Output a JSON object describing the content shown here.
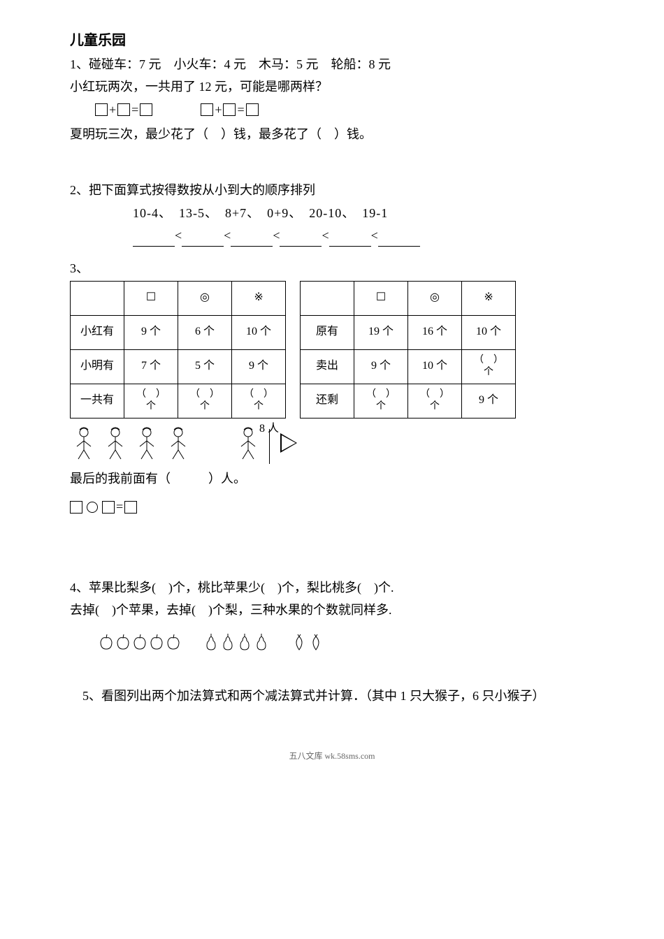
{
  "title": "儿童乐园",
  "q1": {
    "line1": "1、碰碰车：7 元　小火车：4 元　木马：5 元　轮船：8 元",
    "line2": "小红玩两次，一共用了 12 元，可能是哪两样？",
    "line3": "夏明玩三次，最少花了（　）钱，最多花了（　）钱。"
  },
  "q2": {
    "prompt": "2、把下面算式按得数按从小到大的顺序排列",
    "expressions": "10-4、　13-5、　8+7、　0+9、　20-10、　19-1"
  },
  "q3": {
    "label": "3、",
    "table1": {
      "headers": [
        "",
        "☐",
        "◎",
        "※"
      ],
      "rows": [
        {
          "label": "小红有",
          "c1": "9 个",
          "c2": "6 个",
          "c3": "10 个"
        },
        {
          "label": "小明有",
          "c1": "7 个",
          "c2": "5 个",
          "c3": "9 个"
        },
        {
          "label": "一共有",
          "c1": "（　）\n个",
          "c2": "（　）\n个",
          "c3": "（　）\n个"
        }
      ]
    },
    "table2": {
      "headers": [
        "",
        "☐",
        "◎",
        "※"
      ],
      "rows": [
        {
          "label": "原有",
          "c1": "19 个",
          "c2": "16 个",
          "c3": "10 个"
        },
        {
          "label": "卖出",
          "c1": "9 个",
          "c2": "10 个",
          "c3": "（　）\n个"
        },
        {
          "label": "还剩",
          "c1": "（　）\n个",
          "c2": "（　）\n个",
          "c3": "9 个"
        }
      ]
    },
    "arrow_label": "8 人",
    "line_question": "最后的我前面有（　　　）人。"
  },
  "q4": {
    "line1": "4、苹果比梨多(　)个，桃比苹果少(　)个，梨比桃多(　)个.",
    "line2": "去掉(　)个苹果，去掉(　)个梨，三种水果的个数就同样多."
  },
  "q5": {
    "text": "　5、看图列出两个加法算式和两个减法算式并计算．（其中 1 只大猴子，6 只小猴子）"
  },
  "footer": "五八文库 wk.58sms.com"
}
